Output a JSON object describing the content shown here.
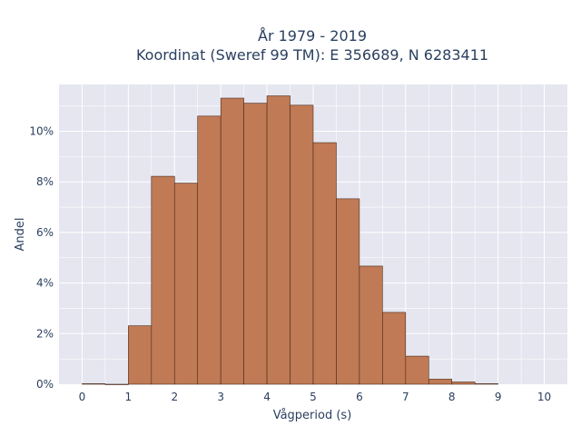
{
  "chart_data": {
    "type": "bar",
    "title_lines": [
      "År 1979 - 2019",
      "Koordinat (Sweref 99 TM): E 356689, N 6283411"
    ],
    "xlabel": "Vågperiod (s)",
    "ylabel": "Andel",
    "xlim": [
      -0.5,
      10.5
    ],
    "ylim": [
      0,
      11.85
    ],
    "x_ticks": [
      "0",
      "1",
      "2",
      "3",
      "4",
      "5",
      "6",
      "7",
      "8",
      "9",
      "10"
    ],
    "y_ticks": [
      "0%",
      "2%",
      "4%",
      "6%",
      "8%",
      "10%"
    ],
    "bin_width": 0.5,
    "bins": [
      {
        "x0": 0.0,
        "value": 0.02
      },
      {
        "x0": 0.5,
        "value": 0.0
      },
      {
        "x0": 1.0,
        "value": 2.31
      },
      {
        "x0": 1.5,
        "value": 8.22
      },
      {
        "x0": 2.0,
        "value": 7.95
      },
      {
        "x0": 2.5,
        "value": 10.6
      },
      {
        "x0": 3.0,
        "value": 11.31
      },
      {
        "x0": 3.5,
        "value": 11.11
      },
      {
        "x0": 4.0,
        "value": 11.4
      },
      {
        "x0": 4.5,
        "value": 11.03
      },
      {
        "x0": 5.0,
        "value": 9.55
      },
      {
        "x0": 5.5,
        "value": 7.33
      },
      {
        "x0": 6.0,
        "value": 4.67
      },
      {
        "x0": 6.5,
        "value": 2.84
      },
      {
        "x0": 7.0,
        "value": 1.11
      },
      {
        "x0": 7.5,
        "value": 0.2
      },
      {
        "x0": 8.0,
        "value": 0.09
      },
      {
        "x0": 8.5,
        "value": 0.02
      }
    ],
    "colors": {
      "bar_fill": "#c07a55",
      "bar_stroke": "#4a2a1a",
      "plot_bg": "#e5e6f0",
      "grid": "#ffffff"
    },
    "grid": true
  }
}
